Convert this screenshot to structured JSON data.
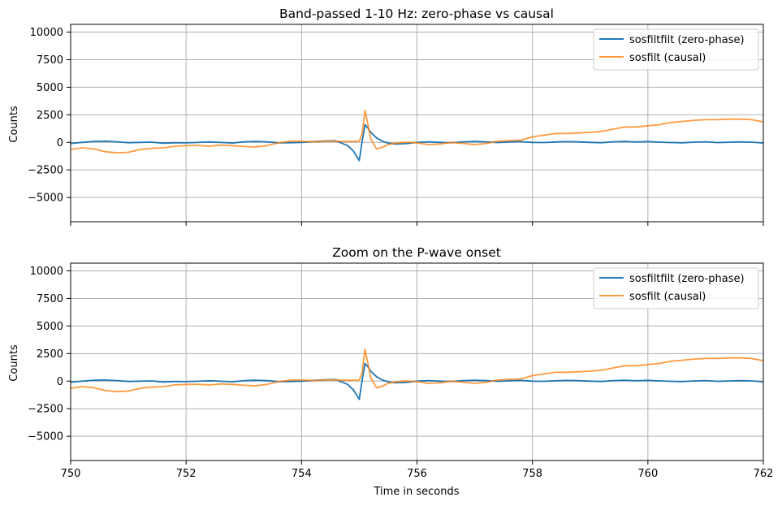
{
  "chart_data": [
    {
      "type": "line",
      "title": "Band-passed 1-10 Hz: zero-phase vs causal",
      "xlabel": "",
      "ylabel": "Counts",
      "xlim": [
        750,
        762
      ],
      "ylim": [
        -7200,
        10700
      ],
      "xticks": [
        750,
        752,
        754,
        756,
        758,
        760,
        762
      ],
      "xtick_labels_visible": false,
      "yticks": [
        -5000,
        -2500,
        0,
        2500,
        5000,
        7500,
        10000
      ],
      "ytick_labels": [
        "−5000",
        "−2500",
        "0",
        "2500",
        "5000",
        "7500",
        "10000"
      ],
      "grid": true,
      "legend_position": "upper right",
      "series": [
        {
          "name": "sosfiltfilt (zero-phase)",
          "color": "#1f77b4",
          "x": [
            750.0,
            750.2,
            750.4,
            750.6,
            750.8,
            751.0,
            751.2,
            751.4,
            751.6,
            751.8,
            752.0,
            752.2,
            752.4,
            752.6,
            752.8,
            753.0,
            753.2,
            753.4,
            753.6,
            753.8,
            754.0,
            754.2,
            754.4,
            754.6,
            754.8,
            754.9,
            755.0,
            755.05,
            755.1,
            755.15,
            755.2,
            755.3,
            755.4,
            755.5,
            755.6,
            755.8,
            756.0,
            756.2,
            756.4,
            756.6,
            756.8,
            757.0,
            757.2,
            757.4,
            757.6,
            757.8,
            758.0,
            758.2,
            758.4,
            758.6,
            758.8,
            759.0,
            759.2,
            759.4,
            759.6,
            759.8,
            760.0,
            760.2,
            760.4,
            760.6,
            760.8,
            761.0,
            761.2,
            761.4,
            761.6,
            761.8,
            762.0
          ],
          "y": [
            -100,
            0,
            80,
            100,
            50,
            -30,
            0,
            20,
            -80,
            -40,
            -50,
            -10,
            30,
            -10,
            -60,
            40,
            80,
            40,
            -40,
            -30,
            0,
            60,
            120,
            140,
            -300,
            -800,
            -1650,
            100,
            1600,
            1300,
            900,
            400,
            100,
            -60,
            -150,
            -120,
            0,
            40,
            0,
            -30,
            40,
            80,
            40,
            -20,
            30,
            60,
            0,
            -20,
            30,
            60,
            40,
            0,
            -30,
            50,
            80,
            30,
            70,
            20,
            -20,
            -40,
            20,
            50,
            -20,
            10,
            40,
            20,
            -60
          ]
        },
        {
          "name": "sosfilt (causal)",
          "color": "#ff7f0e",
          "x": [
            750.0,
            750.2,
            750.4,
            750.6,
            750.8,
            751.0,
            751.2,
            751.4,
            751.6,
            751.8,
            752.0,
            752.2,
            752.4,
            752.6,
            752.8,
            753.0,
            753.2,
            753.4,
            753.6,
            753.8,
            754.0,
            754.2,
            754.4,
            754.6,
            754.8,
            755.0,
            755.05,
            755.1,
            755.15,
            755.2,
            755.3,
            755.4,
            755.5,
            755.6,
            755.8,
            756.0,
            756.2,
            756.4,
            756.6,
            756.8,
            757.0,
            757.2,
            757.4,
            757.6,
            757.8,
            758.0,
            758.2,
            758.4,
            758.6,
            758.8,
            759.0,
            759.2,
            759.4,
            759.6,
            759.8,
            760.0,
            760.2,
            760.4,
            760.6,
            760.8,
            761.0,
            761.2,
            761.4,
            761.6,
            761.8,
            762.0
          ],
          "y": [
            -650,
            -500,
            -600,
            -850,
            -950,
            -900,
            -650,
            -550,
            -500,
            -350,
            -300,
            -280,
            -350,
            -250,
            -300,
            -380,
            -420,
            -300,
            -50,
            100,
            100,
            50,
            100,
            100,
            80,
            100,
            800,
            2900,
            1600,
            300,
            -600,
            -450,
            -200,
            -100,
            20,
            -50,
            -200,
            -150,
            0,
            -100,
            -200,
            -100,
            100,
            150,
            200,
            500,
            650,
            800,
            800,
            850,
            900,
            1000,
            1200,
            1400,
            1400,
            1500,
            1600,
            1800,
            1900,
            2000,
            2050,
            2050,
            2100,
            2100,
            2050,
            1850
          ]
        }
      ]
    },
    {
      "type": "line",
      "title": "Zoom on the P-wave onset",
      "xlabel": "Time in seconds",
      "ylabel": "Counts",
      "xlim": [
        750,
        762
      ],
      "ylim": [
        -7200,
        10700
      ],
      "xticks": [
        750,
        752,
        754,
        756,
        758,
        760,
        762
      ],
      "xtick_labels": [
        "750",
        "752",
        "754",
        "756",
        "758",
        "760",
        "762"
      ],
      "xtick_labels_visible": true,
      "yticks": [
        -5000,
        -2500,
        0,
        2500,
        5000,
        7500,
        10000
      ],
      "ytick_labels": [
        "−5000",
        "−2500",
        "0",
        "2500",
        "5000",
        "7500",
        "10000"
      ],
      "grid": true,
      "legend_position": "upper right",
      "series_same_as_panel": 0
    }
  ]
}
